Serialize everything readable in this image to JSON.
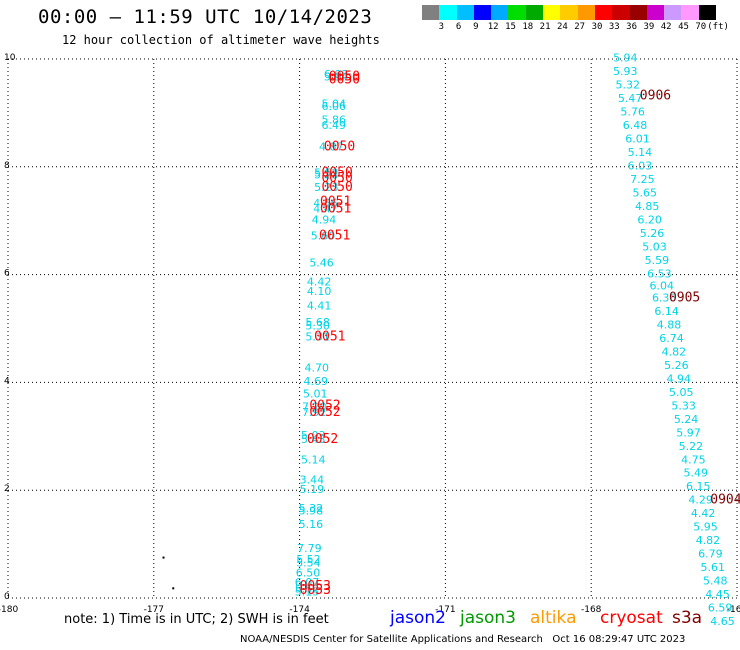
{
  "header": {
    "title": "00:00 – 11:59 UTC 10/14/2023",
    "subtitle": "12 hour collection of altimeter wave heights"
  },
  "colorbar": {
    "colors": [
      "#808080",
      "#00ffff",
      "#00bfff",
      "#0000ff",
      "#00aaff",
      "#00dd00",
      "#00aa00",
      "#ffff00",
      "#ffcc00",
      "#ff9900",
      "#ff0000",
      "#cc0000",
      "#990000",
      "#cc00cc",
      "#cc99ff",
      "#ff99ff",
      "#000000"
    ],
    "labels": [
      "3",
      "6",
      "9",
      "12",
      "15",
      "18",
      "21",
      "24",
      "27",
      "30",
      "33",
      "36",
      "39",
      "42",
      "45",
      "70",
      "(ft)"
    ]
  },
  "chart_data": {
    "type": "scatter",
    "xlim": [
      -180,
      -165
    ],
    "ylim": [
      0,
      10
    ],
    "x_ticks": [
      "-180",
      "-177",
      "-174",
      "-171",
      "-168",
      "-165"
    ],
    "y_ticks": [
      "0",
      "2",
      "4",
      "6",
      "8",
      "10"
    ],
    "grid": true,
    "series": [
      {
        "name": "jason2",
        "color": "#00d4e6",
        "points": [
          {
            "x": -173.5,
            "y": 9.65,
            "label": "6.93"
          },
          {
            "x": -173.5,
            "y": 9.6,
            "label": "5.94"
          },
          {
            "x": -173.55,
            "y": 9.1,
            "label": "5.04"
          },
          {
            "x": -173.55,
            "y": 9.05,
            "label": "6.06"
          },
          {
            "x": -173.55,
            "y": 8.8,
            "label": "5.86"
          },
          {
            "x": -173.55,
            "y": 8.7,
            "label": "6.49"
          },
          {
            "x": -173.6,
            "y": 8.3,
            "label": "4.87"
          },
          {
            "x": -173.7,
            "y": 7.82,
            "label": "5.52"
          },
          {
            "x": -173.7,
            "y": 7.78,
            "label": "5.23"
          },
          {
            "x": -173.7,
            "y": 7.55,
            "label": "5.23"
          },
          {
            "x": -173.72,
            "y": 7.25,
            "label": "4.56"
          },
          {
            "x": -173.72,
            "y": 7.15,
            "label": "4.47"
          },
          {
            "x": -173.75,
            "y": 6.95,
            "label": "4.94"
          },
          {
            "x": -173.77,
            "y": 6.65,
            "label": "5.60"
          },
          {
            "x": -173.8,
            "y": 6.15,
            "label": "5.46"
          },
          {
            "x": -173.85,
            "y": 5.8,
            "label": "4.42"
          },
          {
            "x": -173.85,
            "y": 5.62,
            "label": "4.10"
          },
          {
            "x": -173.85,
            "y": 5.35,
            "label": "4.41"
          },
          {
            "x": -173.88,
            "y": 5.05,
            "label": "5.68"
          },
          {
            "x": -173.88,
            "y": 4.98,
            "label": "5.30"
          },
          {
            "x": -173.88,
            "y": 4.78,
            "label": "5.31"
          },
          {
            "x": -173.9,
            "y": 4.2,
            "label": "4.70"
          },
          {
            "x": -173.92,
            "y": 3.95,
            "label": "4.69"
          },
          {
            "x": -173.93,
            "y": 3.72,
            "label": "5.01"
          },
          {
            "x": -173.95,
            "y": 3.48,
            "label": "7.20"
          },
          {
            "x": -173.95,
            "y": 3.38,
            "label": "7.92"
          },
          {
            "x": -173.97,
            "y": 2.95,
            "label": "5.03"
          },
          {
            "x": -173.97,
            "y": 2.88,
            "label": "5.43"
          },
          {
            "x": -173.97,
            "y": 2.5,
            "label": "5.14"
          },
          {
            "x": -174.0,
            "y": 2.12,
            "label": "3.44"
          },
          {
            "x": -174.0,
            "y": 1.95,
            "label": "5.19"
          },
          {
            "x": -174.02,
            "y": 1.6,
            "label": "5.32"
          },
          {
            "x": -174.02,
            "y": 1.55,
            "label": "5.98"
          },
          {
            "x": -174.02,
            "y": 1.3,
            "label": "5.16"
          },
          {
            "x": -174.05,
            "y": 0.85,
            "label": "7.79"
          },
          {
            "x": -174.07,
            "y": 0.65,
            "label": "5.52"
          },
          {
            "x": -174.07,
            "y": 0.58,
            "label": "5.54"
          },
          {
            "x": -174.08,
            "y": 0.4,
            "label": "6.50"
          },
          {
            "x": -174.1,
            "y": 0.22,
            "label": "6.07"
          },
          {
            "x": -174.1,
            "y": 0.1,
            "label": "5.52"
          },
          {
            "x": -174.1,
            "y": 0.05,
            "label": "5.15"
          },
          {
            "x": -167.55,
            "y": 9.95,
            "label": "5.94"
          },
          {
            "x": -167.55,
            "y": 9.7,
            "label": "5.93"
          },
          {
            "x": -167.5,
            "y": 9.45,
            "label": "5.32"
          },
          {
            "x": -167.45,
            "y": 9.2,
            "label": "5.47"
          },
          {
            "x": -167.4,
            "y": 8.95,
            "label": "5.76"
          },
          {
            "x": -167.35,
            "y": 8.7,
            "label": "6.48"
          },
          {
            "x": -167.3,
            "y": 8.45,
            "label": "6.01"
          },
          {
            "x": -167.25,
            "y": 8.2,
            "label": "5.14"
          },
          {
            "x": -167.25,
            "y": 7.95,
            "label": "6.03"
          },
          {
            "x": -167.2,
            "y": 7.7,
            "label": "7.25"
          },
          {
            "x": -167.15,
            "y": 7.45,
            "label": "5.65"
          },
          {
            "x": -167.1,
            "y": 7.2,
            "label": "4.85"
          },
          {
            "x": -167.05,
            "y": 6.95,
            "label": "6.20"
          },
          {
            "x": -167.0,
            "y": 6.7,
            "label": "5.26"
          },
          {
            "x": -166.95,
            "y": 6.45,
            "label": "5.03"
          },
          {
            "x": -166.9,
            "y": 6.2,
            "label": "5.59"
          },
          {
            "x": -166.85,
            "y": 5.95,
            "label": "6.53"
          },
          {
            "x": -166.8,
            "y": 5.72,
            "label": "6.04"
          },
          {
            "x": -166.75,
            "y": 5.5,
            "label": "6.36"
          },
          {
            "x": -166.7,
            "y": 5.25,
            "label": "6.14"
          },
          {
            "x": -166.65,
            "y": 5.0,
            "label": "4.88"
          },
          {
            "x": -166.6,
            "y": 4.75,
            "label": "6.74"
          },
          {
            "x": -166.55,
            "y": 4.5,
            "label": "4.82"
          },
          {
            "x": -166.5,
            "y": 4.25,
            "label": "5.26"
          },
          {
            "x": -166.45,
            "y": 4.0,
            "label": "4.94"
          },
          {
            "x": -166.4,
            "y": 3.75,
            "label": "5.05"
          },
          {
            "x": -166.35,
            "y": 3.5,
            "label": "5.33"
          },
          {
            "x": -166.3,
            "y": 3.25,
            "label": "5.24"
          },
          {
            "x": -166.25,
            "y": 3.0,
            "label": "5.97"
          },
          {
            "x": -166.2,
            "y": 2.75,
            "label": "5.22"
          },
          {
            "x": -166.15,
            "y": 2.5,
            "label": "4.75"
          },
          {
            "x": -166.1,
            "y": 2.25,
            "label": "5.49"
          },
          {
            "x": -166.05,
            "y": 2.0,
            "label": "6.15"
          },
          {
            "x": -166.0,
            "y": 1.75,
            "label": "4.29"
          },
          {
            "x": -165.95,
            "y": 1.5,
            "label": "4.42"
          },
          {
            "x": -165.9,
            "y": 1.25,
            "label": "5.95"
          },
          {
            "x": -165.85,
            "y": 1.0,
            "label": "4.82"
          },
          {
            "x": -165.8,
            "y": 0.75,
            "label": "6.79"
          },
          {
            "x": -165.75,
            "y": 0.5,
            "label": "5.61"
          },
          {
            "x": -165.7,
            "y": 0.25,
            "label": "5.48"
          },
          {
            "x": -165.65,
            "y": 0.0,
            "label": "4.45"
          },
          {
            "x": -165.6,
            "y": -0.25,
            "label": "6.59"
          },
          {
            "x": -165.55,
            "y": -0.5,
            "label": "4.65"
          }
        ]
      }
    ],
    "time_labels": [
      {
        "x": -173.4,
        "y": 9.6,
        "label": "0050"
      },
      {
        "x": -173.4,
        "y": 9.55,
        "label": "0050"
      },
      {
        "x": -173.5,
        "y": 8.3,
        "label": "0050"
      },
      {
        "x": -173.55,
        "y": 7.82,
        "label": "0050"
      },
      {
        "x": -173.55,
        "y": 7.72,
        "label": "0050"
      },
      {
        "x": -173.55,
        "y": 7.55,
        "label": "0050"
      },
      {
        "x": -173.58,
        "y": 7.28,
        "label": "0051"
      },
      {
        "x": -173.58,
        "y": 7.15,
        "label": "0051"
      },
      {
        "x": -173.6,
        "y": 6.65,
        "label": "0051"
      },
      {
        "x": -173.7,
        "y": 4.78,
        "label": "0051"
      },
      {
        "x": -173.8,
        "y": 3.5,
        "label": "0052"
      },
      {
        "x": -173.8,
        "y": 3.38,
        "label": "0052"
      },
      {
        "x": -173.85,
        "y": 2.88,
        "label": "0052"
      },
      {
        "x": -174.0,
        "y": 0.15,
        "label": "0053"
      },
      {
        "x": -174.0,
        "y": 0.07,
        "label": "0053"
      },
      {
        "x": -167.0,
        "y": 9.25,
        "label": "0906",
        "color": "#800000"
      },
      {
        "x": -166.4,
        "y": 5.5,
        "label": "0905",
        "color": "#800000"
      },
      {
        "x": -165.55,
        "y": 1.75,
        "label": "0904",
        "color": "#800000"
      },
      {
        "x": -164.95,
        "y": -0.05,
        "label": "0",
        "color": "#800000"
      }
    ],
    "markers": [
      {
        "x": -176.8,
        "y": 0.75
      },
      {
        "x": -176.6,
        "y": 0.18
      }
    ]
  },
  "note": "note: 1) Time is in UTC; 2) SWH is in feet",
  "legend": [
    {
      "name": "jason2",
      "color": "#0000ff"
    },
    {
      "name": "jason3",
      "color": "#009900"
    },
    {
      "name": "altika",
      "color": "#ff9900"
    },
    {
      "name": "cryosat",
      "color": "#ff0000"
    },
    {
      "name": "s3a",
      "color": "#800000"
    }
  ],
  "footer": "NOAA/NESDIS Center for Satellite Applications and Research   Oct 16 08:29:47 UTC 2023"
}
